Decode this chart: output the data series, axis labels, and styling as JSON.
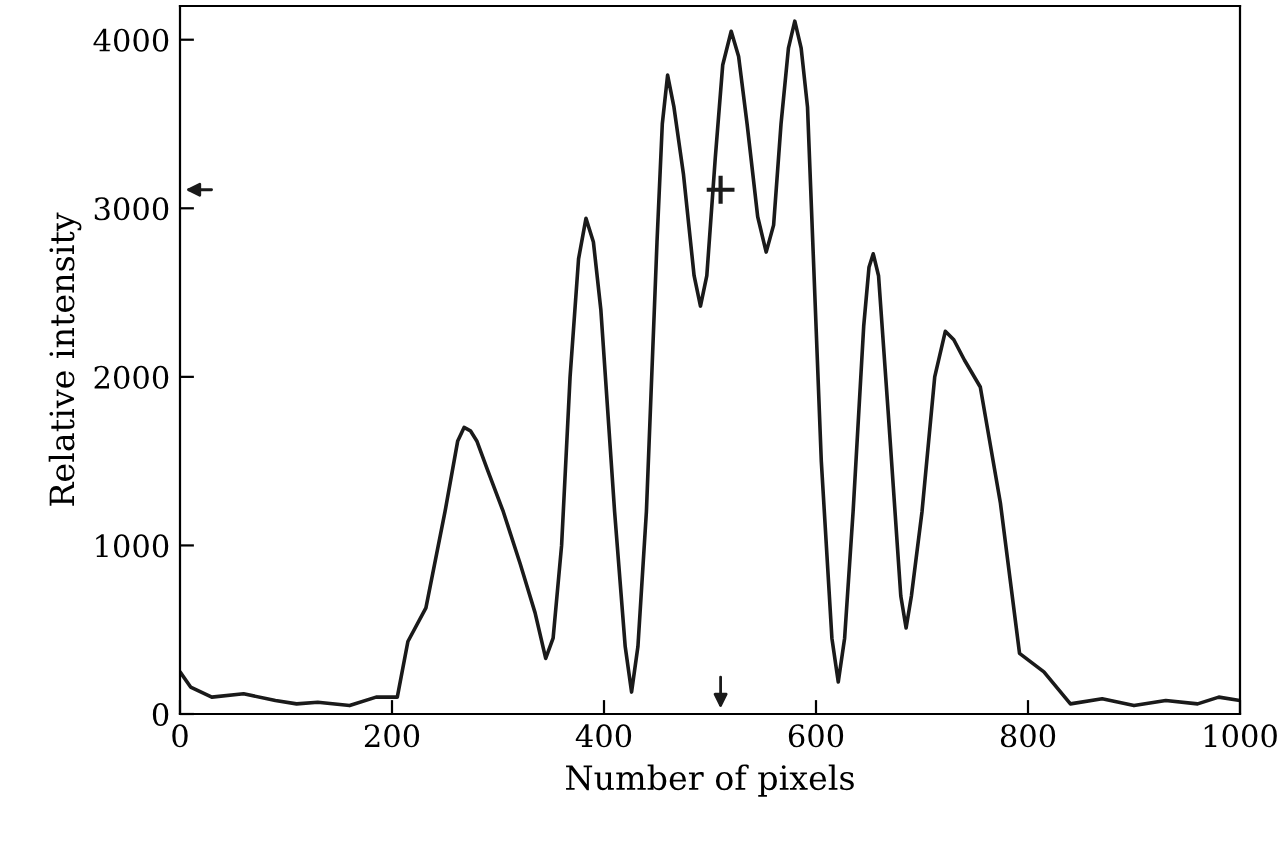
{
  "chart_data": {
    "type": "line",
    "xlabel": "Number of pixels",
    "ylabel": "Relative intensity",
    "xlim": [
      0,
      1000
    ],
    "ylim": [
      0,
      4200
    ],
    "xticks": [
      0,
      200,
      400,
      600,
      800,
      1000
    ],
    "yticks": [
      0,
      1000,
      2000,
      3000,
      4000
    ],
    "grid": false,
    "legend": false,
    "series": [
      {
        "color": "#1a1a1a",
        "x": [
          0,
          10,
          30,
          60,
          90,
          110,
          130,
          160,
          185,
          205,
          215,
          232,
          250,
          262,
          268,
          274,
          280,
          290,
          305,
          321,
          335,
          345,
          352,
          360,
          368,
          376,
          383,
          390,
          397,
          410,
          420,
          426,
          432,
          440,
          450,
          455,
          460,
          466,
          475,
          485,
          491,
          497,
          505,
          512,
          520,
          527,
          535,
          545,
          553,
          560,
          567,
          574,
          580,
          586,
          592,
          605,
          615,
          621,
          627,
          635,
          645,
          650,
          654,
          659,
          668,
          680,
          685,
          690,
          700,
          712,
          722,
          730,
          740,
          755,
          774,
          792,
          815,
          840,
          870,
          900,
          930,
          960,
          980,
          1000
        ],
        "values": [
          250,
          160,
          100,
          120,
          80,
          60,
          70,
          50,
          100,
          100,
          430,
          630,
          1200,
          1620,
          1700,
          1680,
          1620,
          1450,
          1200,
          890,
          600,
          330,
          450,
          1000,
          2000,
          2700,
          2940,
          2800,
          2400,
          1200,
          400,
          130,
          400,
          1200,
          2800,
          3500,
          3790,
          3600,
          3200,
          2600,
          2420,
          2600,
          3300,
          3850,
          4050,
          3900,
          3500,
          2950,
          2740,
          2900,
          3500,
          3950,
          4110,
          3950,
          3600,
          1500,
          450,
          190,
          450,
          1200,
          2300,
          2650,
          2730,
          2600,
          1800,
          700,
          510,
          700,
          1200,
          2000,
          2270,
          2220,
          2100,
          1940,
          1250,
          360,
          250,
          60,
          90,
          50,
          80,
          60,
          100,
          80
        ]
      },
      {
        "type": "scatter",
        "marker": "cross",
        "color": "#1a1a1a",
        "x": [
          510
        ],
        "values": [
          3110
        ]
      }
    ]
  }
}
